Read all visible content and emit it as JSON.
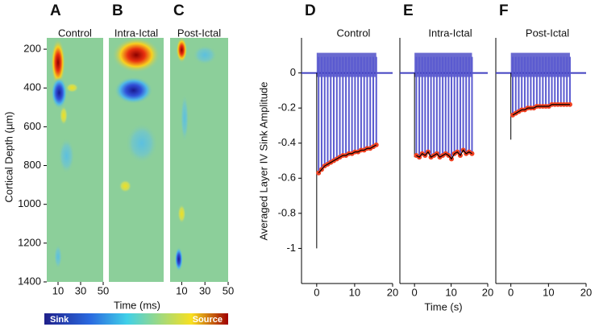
{
  "chart_data": [
    {
      "type": "heatmap",
      "letter": "A",
      "title": "Control",
      "ylabel": "Cortical Depth (µm)",
      "xlabel": "Time (ms)",
      "xlim": [
        0,
        50
      ],
      "xticks": [
        10,
        30,
        50
      ],
      "ylim": [
        100,
        1400
      ],
      "y_inverted": true,
      "yticks": [
        200,
        400,
        600,
        800,
        1000,
        1200,
        1400
      ],
      "colorbar": {
        "low": "Sink",
        "high": "Source"
      }
    },
    {
      "type": "heatmap",
      "letter": "B",
      "title": "Intra-Ictal",
      "xlim": [
        0,
        50
      ],
      "ylim": [
        100,
        1400
      ],
      "y_inverted": true
    },
    {
      "type": "heatmap",
      "letter": "C",
      "title": "Post-Ictal",
      "xlim": [
        0,
        50
      ],
      "xticks": [
        10,
        30,
        50
      ],
      "ylim": [
        100,
        1400
      ],
      "y_inverted": true
    },
    {
      "type": "line",
      "letter": "D",
      "title": "Control",
      "ylabel": "Averaged Layer IV Sink Amplitude",
      "xlim": [
        -4,
        20
      ],
      "xticks": [
        0,
        10,
        20
      ],
      "ylim": [
        -1.2,
        0.2
      ],
      "yticks": [
        0,
        -0.2,
        -0.4,
        -0.6,
        -0.8,
        -1
      ],
      "onset": -1.0,
      "x": [
        0.5,
        1.3,
        2.1,
        2.9,
        3.7,
        4.5,
        5.3,
        6.1,
        6.9,
        7.7,
        8.5,
        9.3,
        10.1,
        10.9,
        11.7,
        12.5,
        13.3,
        14.1,
        14.9,
        15.7
      ],
      "values": [
        -0.57,
        -0.55,
        -0.53,
        -0.52,
        -0.51,
        -0.5,
        -0.49,
        -0.48,
        -0.47,
        -0.47,
        -0.46,
        -0.46,
        -0.45,
        -0.45,
        -0.44,
        -0.44,
        -0.43,
        -0.43,
        -0.42,
        -0.41
      ]
    },
    {
      "type": "line",
      "letter": "E",
      "title": "Intra-Ictal",
      "xlabel": "Time (s)",
      "xlim": [
        -4,
        20
      ],
      "xticks": [
        0,
        10,
        20
      ],
      "ylim": [
        -1.2,
        0.2
      ],
      "onset": -0.48,
      "x": [
        0.5,
        1.3,
        2.1,
        2.9,
        3.7,
        4.5,
        5.3,
        6.1,
        6.9,
        7.7,
        8.5,
        9.3,
        10.1,
        10.9,
        11.7,
        12.5,
        13.3,
        14.1,
        14.9,
        15.7
      ],
      "values": [
        -0.47,
        -0.48,
        -0.46,
        -0.47,
        -0.45,
        -0.48,
        -0.47,
        -0.46,
        -0.48,
        -0.47,
        -0.46,
        -0.47,
        -0.49,
        -0.46,
        -0.45,
        -0.47,
        -0.44,
        -0.46,
        -0.45,
        -0.46
      ]
    },
    {
      "type": "line",
      "letter": "F",
      "title": "Post-Ictal",
      "xlim": [
        -4,
        20
      ],
      "xticks": [
        0,
        10,
        20
      ],
      "ylim": [
        -1.2,
        0.2
      ],
      "onset": -0.38,
      "x": [
        0.5,
        1.3,
        2.1,
        2.9,
        3.7,
        4.5,
        5.3,
        6.1,
        6.9,
        7.7,
        8.5,
        9.3,
        10.1,
        10.9,
        11.7,
        12.5,
        13.3,
        14.1,
        14.9,
        15.7
      ],
      "values": [
        -0.24,
        -0.23,
        -0.22,
        -0.21,
        -0.21,
        -0.2,
        -0.2,
        -0.2,
        -0.19,
        -0.19,
        -0.19,
        -0.19,
        -0.19,
        -0.18,
        -0.18,
        -0.18,
        -0.18,
        -0.18,
        -0.18,
        -0.18
      ]
    }
  ]
}
